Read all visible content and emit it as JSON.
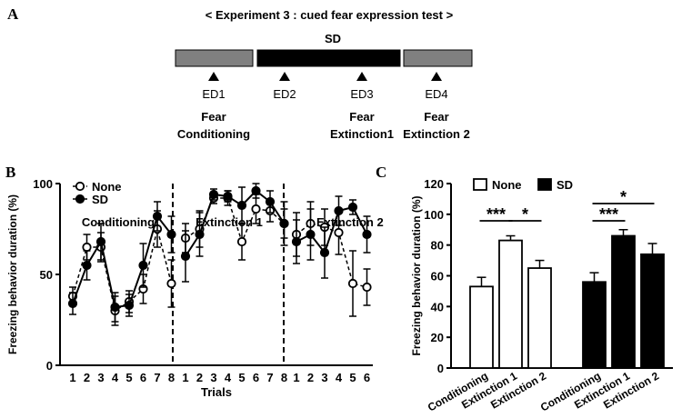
{
  "colors": {
    "black": "#000000",
    "gray_bar": "#808080",
    "white": "#ffffff"
  },
  "panel_a": {
    "letter": "A",
    "title": "< Experiment 3 : cued fear expression test >",
    "sd_label": "SD",
    "markers": [
      {
        "ed": "ED1",
        "phase_line1": "Fear",
        "phase_line2": "Conditioning"
      },
      {
        "ed": "ED2",
        "phase_line1": "",
        "phase_line2": ""
      },
      {
        "ed": "ED3",
        "phase_line1": "Fear",
        "phase_line2": "Extinction1"
      },
      {
        "ed": "ED4",
        "phase_line1": "Fear",
        "phase_line2": "Extinction 2"
      }
    ]
  },
  "chart_data": [
    {
      "panel": "B",
      "type": "line",
      "ylabel": "Freezing behavior duration (%)",
      "xlabel": "Trials",
      "ylim": [
        0,
        100
      ],
      "yticks": [
        0,
        50,
        100
      ],
      "legend": [
        "None",
        "SD"
      ],
      "segments": [
        {
          "label": "Conditioning",
          "trials": [
            "1",
            "2",
            "3",
            "4",
            "5",
            "6",
            "7",
            "8"
          ],
          "series": [
            {
              "name": "None",
              "values": [
                38,
                65,
                65,
                30,
                35,
                42,
                75,
                45
              ],
              "errors": [
                5,
                7,
                8,
                8,
                6,
                8,
                10,
                13
              ]
            },
            {
              "name": "SD",
              "values": [
                34,
                55,
                68,
                32,
                33,
                55,
                82,
                72
              ],
              "errors": [
                6,
                8,
                10,
                8,
                6,
                12,
                8,
                10
              ]
            }
          ]
        },
        {
          "label": "Extinction 1",
          "trials": [
            "1",
            "2",
            "3",
            "4",
            "5",
            "6",
            "7",
            "8"
          ],
          "series": [
            {
              "name": "None",
              "values": [
                70,
                75,
                92,
                92,
                68,
                86,
                85,
                78
              ],
              "errors": [
                8,
                10,
                3,
                4,
                10,
                8,
                6,
                12
              ]
            },
            {
              "name": "SD",
              "values": [
                60,
                72,
                94,
                93,
                88,
                96,
                90,
                78
              ],
              "errors": [
                14,
                12,
                3,
                3,
                10,
                4,
                6,
                8
              ]
            }
          ]
        },
        {
          "label": "Extinction 2",
          "trials": [
            "1",
            "2",
            "3",
            "4",
            "5",
            "6"
          ],
          "series": [
            {
              "name": "None",
              "values": [
                72,
                78,
                76,
                73,
                45,
                43
              ],
              "errors": [
                12,
                12,
                10,
                12,
                18,
                10
              ]
            },
            {
              "name": "SD",
              "values": [
                68,
                72,
                62,
                85,
                87,
                72
              ],
              "errors": [
                12,
                14,
                14,
                8,
                4,
                10
              ]
            }
          ]
        }
      ]
    },
    {
      "panel": "C",
      "type": "bar",
      "ylabel": "Freezing behavior duration (%)",
      "ylim": [
        0,
        120
      ],
      "yticks": [
        0,
        20,
        40,
        60,
        80,
        100,
        120
      ],
      "categories": [
        "Conditioning",
        "Extinction 1",
        "Extinction 2"
      ],
      "series": [
        {
          "name": "None",
          "values": [
            53,
            83,
            65
          ],
          "errors": [
            6,
            3,
            5
          ]
        },
        {
          "name": "SD",
          "values": [
            56,
            86,
            74
          ],
          "errors": [
            6,
            4,
            7
          ]
        }
      ],
      "annotations": [
        {
          "group": "None",
          "from": 0,
          "to": 1,
          "label": "***"
        },
        {
          "group": "None",
          "from": 1,
          "to": 2,
          "label": "*"
        },
        {
          "group": "SD",
          "from": 0,
          "to": 1,
          "label": "***"
        },
        {
          "group": "SD",
          "from": 0,
          "to": 2,
          "label": "*"
        }
      ]
    }
  ]
}
